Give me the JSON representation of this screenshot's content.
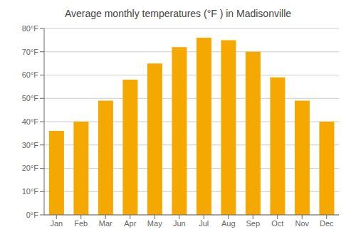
{
  "chart_data": {
    "type": "bar",
    "title": "Average monthly temperatures (°F ) in Madisonville",
    "categories": [
      "Jan",
      "Feb",
      "Mar",
      "Apr",
      "May",
      "Jun",
      "Jul",
      "Aug",
      "Sep",
      "Oct",
      "Nov",
      "Dec"
    ],
    "values": [
      36,
      40,
      49,
      58,
      65,
      72,
      76,
      75,
      70,
      59,
      49,
      40
    ],
    "color": "#F5A800",
    "ylim": [
      0,
      80
    ],
    "yticks": [
      {
        "value": 0,
        "label": "0°F"
      },
      {
        "value": 10,
        "label": "10°F"
      },
      {
        "value": 20,
        "label": "20°F"
      },
      {
        "value": 30,
        "label": "30°F"
      },
      {
        "value": 40,
        "label": "40°F"
      },
      {
        "value": 50,
        "label": "50°F"
      },
      {
        "value": 60,
        "label": "60°F"
      },
      {
        "value": 70,
        "label": "70°F"
      },
      {
        "value": 80,
        "label": "80°F"
      }
    ],
    "grid": true
  }
}
